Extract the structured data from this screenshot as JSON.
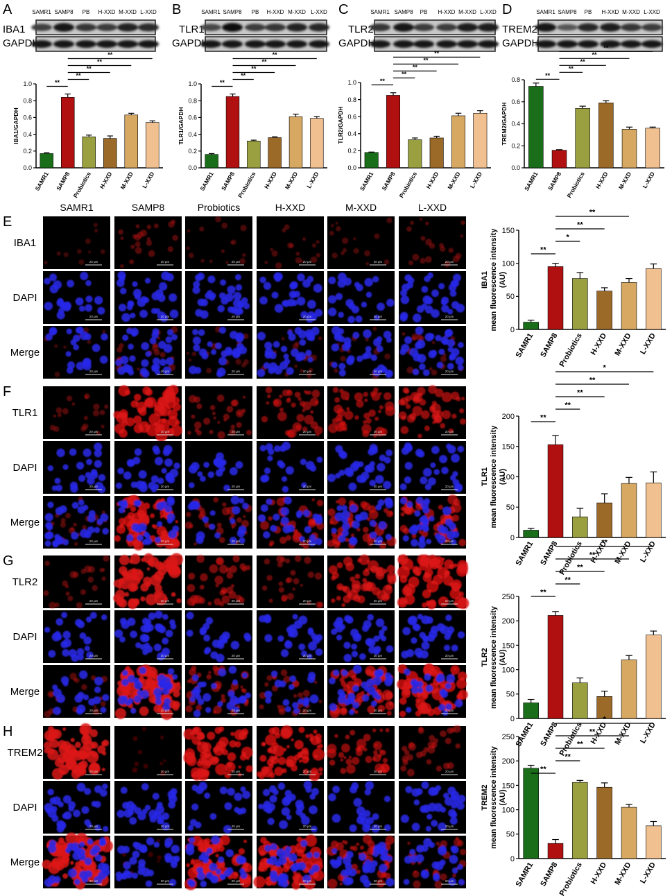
{
  "colors": {
    "SAMR1": "#1a6e1a",
    "SAMP8": "#b01010",
    "Probiotics": "#9aa040",
    "H-XXD": "#9c6a28",
    "M-XXD": "#d6a862",
    "L-XXD": "#f0c090",
    "red_channel": "#d01010",
    "blue_channel": "#1a1ad0"
  },
  "blots": [
    {
      "panel": "A",
      "protein": "IBA1",
      "loading": "GAPDH",
      "lanes": [
        "SAMR1",
        "SAMP8",
        "PB",
        "H-XXD",
        "M-XXD",
        "L-XXD"
      ]
    },
    {
      "panel": "B",
      "protein": "TLR1",
      "loading": "GAPDH",
      "lanes": [
        "SAMR1",
        "SAMP8",
        "PB",
        "H-XXD",
        "M-XXD",
        "L-XXD"
      ]
    },
    {
      "panel": "C",
      "protein": "TLR2",
      "loading": "GAPDH",
      "lanes": [
        "SAMR1",
        "SAMP8",
        "PB",
        "H-XXD",
        "M-XXD",
        "L-XXD"
      ]
    },
    {
      "panel": "D",
      "protein": "TREM2",
      "loading": "GAPDH",
      "lanes": [
        "SAMR1",
        "SAMP8",
        "PB",
        "H-XXD",
        "M-XXD",
        "L-XXD"
      ]
    }
  ],
  "micro": {
    "columns": [
      "SAMR1",
      "SAMP8",
      "Probiotics",
      "H-XXD",
      "M-XXD",
      "L-XXD"
    ],
    "scale_bar": "20 μm",
    "panels": [
      {
        "panel": "E",
        "rows": [
          "IBA1",
          "DAPI",
          "Merge"
        ],
        "red_intensity": [
          0.04,
          0.22,
          0.12,
          0.14,
          0.12,
          0.18
        ]
      },
      {
        "panel": "F",
        "rows": [
          "TLR1",
          "DAPI",
          "Merge"
        ],
        "red_intensity": [
          0.18,
          0.85,
          0.35,
          0.5,
          0.55,
          0.6
        ]
      },
      {
        "panel": "G",
        "rows": [
          "TLR2",
          "DAPI",
          "Merge"
        ],
        "red_intensity": [
          0.22,
          0.9,
          0.45,
          0.3,
          0.7,
          0.85
        ]
      },
      {
        "panel": "H",
        "rows": [
          "TREM2",
          "DAPI",
          "Merge"
        ],
        "red_intensity": [
          0.9,
          0.03,
          0.85,
          0.85,
          0.55,
          0.35
        ]
      }
    ]
  },
  "chart_data": [
    {
      "panel": "A",
      "type": "bar",
      "categories": [
        "SAMR1",
        "SAMP8",
        "Probiotics",
        "H-XXD",
        "M-XXD",
        "L-XXD"
      ],
      "values": [
        0.17,
        0.84,
        0.37,
        0.35,
        0.63,
        0.54
      ],
      "errors": [
        0.01,
        0.04,
        0.02,
        0.03,
        0.02,
        0.02
      ],
      "ylabel": "IBA1/GAPDH",
      "ylim": [
        0,
        1.0
      ],
      "yticks": [
        "0.0",
        "0.2",
        "0.4",
        "0.6",
        "0.8",
        "1.0"
      ],
      "sig": [
        {
          "from": 0,
          "to": 1,
          "label": "**"
        },
        {
          "from": 1,
          "to": 2,
          "label": "**"
        },
        {
          "from": 1,
          "to": 3,
          "label": "**"
        },
        {
          "from": 1,
          "to": 4,
          "label": "**"
        },
        {
          "from": 1,
          "to": 5,
          "label": "**"
        }
      ]
    },
    {
      "panel": "B",
      "type": "bar",
      "categories": [
        "SAMR1",
        "SAMP8",
        "Probiotics",
        "H-XXD",
        "M-XXD",
        "L-XXD"
      ],
      "values": [
        0.16,
        0.85,
        0.32,
        0.36,
        0.61,
        0.59
      ],
      "errors": [
        0.01,
        0.03,
        0.01,
        0.01,
        0.03,
        0.02
      ],
      "ylabel": "TLR1/GAPDH",
      "ylim": [
        0,
        1.0
      ],
      "yticks": [
        "0.0",
        "0.2",
        "0.4",
        "0.6",
        "0.8",
        "1.0"
      ],
      "sig": [
        {
          "from": 0,
          "to": 1,
          "label": "**"
        },
        {
          "from": 1,
          "to": 2,
          "label": "**"
        },
        {
          "from": 1,
          "to": 3,
          "label": "**"
        },
        {
          "from": 1,
          "to": 4,
          "label": "**"
        },
        {
          "from": 1,
          "to": 5,
          "label": "**"
        }
      ]
    },
    {
      "panel": "C",
      "type": "bar",
      "categories": [
        "SAMR1",
        "SAMP8",
        "Probiotics",
        "H-XXD",
        "M-XXD",
        "L-XXD"
      ],
      "values": [
        0.18,
        0.85,
        0.33,
        0.35,
        0.61,
        0.64
      ],
      "errors": [
        0.005,
        0.03,
        0.02,
        0.02,
        0.03,
        0.03
      ],
      "ylabel": "TLR2/GAPDH",
      "ylim": [
        0,
        1.0
      ],
      "yticks": [
        "0.0",
        "0.2",
        "0.4",
        "0.6",
        "0.8",
        "1.0"
      ],
      "sig": [
        {
          "from": 0,
          "to": 1,
          "label": "**"
        },
        {
          "from": 1,
          "to": 2,
          "label": "**"
        },
        {
          "from": 1,
          "to": 3,
          "label": "**"
        },
        {
          "from": 1,
          "to": 4,
          "label": "**"
        },
        {
          "from": 1,
          "to": 5,
          "label": "**"
        }
      ]
    },
    {
      "panel": "D",
      "type": "bar",
      "categories": [
        "SAMR1",
        "SAMP8",
        "Probiotics",
        "H-XXD",
        "M-XXD",
        "L-XXD"
      ],
      "values": [
        0.74,
        0.16,
        0.54,
        0.59,
        0.35,
        0.36
      ],
      "errors": [
        0.03,
        0.005,
        0.02,
        0.02,
        0.02,
        0.01
      ],
      "ylabel": "TREM2/GAPDH",
      "ylim": [
        0,
        0.8
      ],
      "yticks": [
        "0.0",
        "0.2",
        "0.4",
        "0.6",
        "0.8"
      ],
      "sig": [
        {
          "from": 0,
          "to": 1,
          "label": "**"
        },
        {
          "from": 1,
          "to": 2,
          "label": "**"
        },
        {
          "from": 1,
          "to": 3,
          "label": "**"
        },
        {
          "from": 1,
          "to": 4,
          "label": "**"
        },
        {
          "from": 1,
          "to": 5,
          "label": "**"
        }
      ]
    },
    {
      "panel": "E",
      "type": "bar",
      "categories": [
        "SAMR1",
        "SAMP8",
        "Probiotics",
        "H-XXD",
        "M-XXD",
        "L-XXD"
      ],
      "values": [
        11,
        95,
        77,
        58,
        71,
        92
      ],
      "errors": [
        3,
        5,
        9,
        5,
        6,
        7
      ],
      "ylabel_line1": "IBA1",
      "ylabel_line2": "mean fluorescence intensity",
      "ylabel_line3": "(AU)",
      "ylim": [
        0,
        150
      ],
      "yticks": [
        "0",
        "50",
        "100",
        "150"
      ],
      "sig": [
        {
          "from": 0,
          "to": 1,
          "label": "**"
        },
        {
          "from": 1,
          "to": 2,
          "label": "*"
        },
        {
          "from": 1,
          "to": 3,
          "label": "**"
        },
        {
          "from": 1,
          "to": 4,
          "label": "**"
        }
      ]
    },
    {
      "panel": "F",
      "type": "bar",
      "categories": [
        "SAMR1",
        "SAMP8",
        "Probiotics",
        "H-XXD",
        "M-XXD",
        "L-XXD"
      ],
      "values": [
        12,
        153,
        34,
        57,
        89,
        90
      ],
      "errors": [
        3,
        15,
        14,
        15,
        10,
        18
      ],
      "ylabel_line1": "TLR1",
      "ylabel_line2": "mean fluorescence intensity",
      "ylabel_line3": "(AU)",
      "ylim": [
        0,
        200
      ],
      "yticks": [
        "0",
        "50",
        "100",
        "150",
        "200"
      ],
      "sig": [
        {
          "from": 0,
          "to": 1,
          "label": "**"
        },
        {
          "from": 1,
          "to": 2,
          "label": "**"
        },
        {
          "from": 1,
          "to": 3,
          "label": "**"
        },
        {
          "from": 1,
          "to": 4,
          "label": "**"
        },
        {
          "from": 1,
          "to": 5,
          "label": "*"
        }
      ]
    },
    {
      "panel": "G",
      "type": "bar",
      "categories": [
        "SAMR1",
        "SAMP8",
        "Probiotics",
        "H-XXD",
        "M-XXD",
        "L-XXD"
      ],
      "values": [
        32,
        211,
        73,
        45,
        120,
        171
      ],
      "errors": [
        7,
        8,
        10,
        11,
        9,
        8
      ],
      "ylabel_line1": "TLR2",
      "ylabel_line2": "mean fluorescence intensity",
      "ylabel_line3": "(AU)",
      "ylim": [
        0,
        250
      ],
      "yticks": [
        "0",
        "50",
        "100",
        "150",
        "200",
        "250"
      ],
      "sig": [
        {
          "from": 0,
          "to": 1,
          "label": "**"
        },
        {
          "from": 1,
          "to": 2,
          "label": "**"
        },
        {
          "from": 1,
          "to": 3,
          "label": "**"
        },
        {
          "from": 1,
          "to": 4,
          "label": "**"
        },
        {
          "from": 1,
          "to": 5,
          "label": "**"
        }
      ]
    },
    {
      "panel": "H",
      "type": "bar",
      "categories": [
        "SAMR1",
        "SAMP8",
        "Probiotics",
        "H-XXD",
        "M-XXD",
        "L-XXD"
      ],
      "values": [
        185,
        31,
        156,
        146,
        105,
        67
      ],
      "errors": [
        6,
        8,
        4,
        9,
        6,
        9
      ],
      "ylabel_line1": "TREM2",
      "ylabel_line2": "mean fluorescence intensity",
      "ylabel_line3": "(AU)",
      "ylim": [
        0,
        250
      ],
      "yticks": [
        "0",
        "50",
        "100",
        "150",
        "200",
        "250"
      ],
      "sig": [
        {
          "from": 0,
          "to": 1,
          "label": "**"
        },
        {
          "from": 1,
          "to": 2,
          "label": "**"
        },
        {
          "from": 1,
          "to": 3,
          "label": "**"
        },
        {
          "from": 1,
          "to": 4,
          "label": "**"
        },
        {
          "from": 1,
          "to": 5,
          "label": "*"
        }
      ]
    }
  ]
}
